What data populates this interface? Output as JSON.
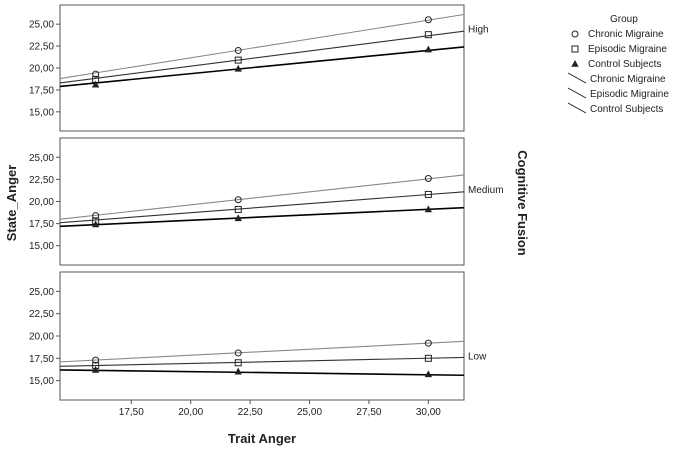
{
  "chart_data": {
    "type": "line",
    "xlabel": "Trait Anger",
    "ylabel": "State_Anger",
    "facet_label": "Cognitive Fusion",
    "xlim": [
      14.5,
      31.5
    ],
    "x_ticks": [
      "17,50",
      "20,00",
      "22,50",
      "25,00",
      "27,50",
      "30,00"
    ],
    "x_tick_values": [
      17.5,
      20,
      22.5,
      25,
      27.5,
      30
    ],
    "ylim": [
      13.5,
      26.5
    ],
    "y_ticks": [
      "15,00",
      "17,50",
      "20,00",
      "22,50",
      "25,00"
    ],
    "y_tick_values": [
      15,
      17.5,
      20,
      22.5,
      25
    ],
    "grid": false,
    "legend": {
      "title": "Group",
      "placement": "right",
      "marker_entries": [
        {
          "label": "Chronic Migraine",
          "marker": "circle"
        },
        {
          "label": "Episodic Migraine",
          "marker": "square"
        },
        {
          "label": "Control Subjects",
          "marker": "triangle"
        }
      ],
      "line_entries": [
        {
          "label": "Chronic Migraine"
        },
        {
          "label": "Episodic Migraine"
        },
        {
          "label": "Control Subjects"
        }
      ]
    },
    "panels": [
      {
        "label": "High",
        "series": [
          {
            "group": "Chronic Migraine",
            "marker": "circle",
            "color": "#888888",
            "points": [
              [
                16,
                19.3
              ],
              [
                22,
                22.0
              ],
              [
                30,
                25.5
              ]
            ],
            "fit": [
              [
                14.5,
                18.8
              ],
              [
                31.5,
                26.1
              ]
            ]
          },
          {
            "group": "Episodic Migraine",
            "marker": "square",
            "color": "#333333",
            "points": [
              [
                16,
                18.7
              ],
              [
                22,
                20.9
              ],
              [
                30,
                23.8
              ]
            ],
            "fit": [
              [
                14.5,
                18.3
              ],
              [
                31.5,
                24.2
              ]
            ]
          },
          {
            "group": "Control Subjects",
            "marker": "triangle",
            "color": "#000000",
            "points": [
              [
                16,
                18.1
              ],
              [
                22,
                19.9
              ],
              [
                30,
                22.1
              ]
            ],
            "fit": [
              [
                14.5,
                17.9
              ],
              [
                31.5,
                22.4
              ]
            ]
          }
        ]
      },
      {
        "label": "Medium",
        "series": [
          {
            "group": "Chronic Migraine",
            "marker": "circle",
            "color": "#888888",
            "points": [
              [
                16,
                18.4
              ],
              [
                22,
                20.2
              ],
              [
                30,
                22.6
              ]
            ],
            "fit": [
              [
                14.5,
                18.0
              ],
              [
                31.5,
                23.0
              ]
            ]
          },
          {
            "group": "Episodic Migraine",
            "marker": "square",
            "color": "#333333",
            "points": [
              [
                16,
                17.8
              ],
              [
                22,
                19.1
              ],
              [
                30,
                20.8
              ]
            ],
            "fit": [
              [
                14.5,
                17.6
              ],
              [
                31.5,
                21.1
              ]
            ]
          },
          {
            "group": "Control Subjects",
            "marker": "triangle",
            "color": "#000000",
            "points": [
              [
                16,
                17.4
              ],
              [
                22,
                18.1
              ],
              [
                30,
                19.1
              ]
            ],
            "fit": [
              [
                14.5,
                17.2
              ],
              [
                31.5,
                19.3
              ]
            ]
          }
        ]
      },
      {
        "label": "Low",
        "series": [
          {
            "group": "Chronic Migraine",
            "marker": "circle",
            "color": "#888888",
            "points": [
              [
                16,
                17.3
              ],
              [
                22,
                18.1
              ],
              [
                30,
                19.2
              ]
            ],
            "fit": [
              [
                14.5,
                17.1
              ],
              [
                31.5,
                19.4
              ]
            ]
          },
          {
            "group": "Episodic Migraine",
            "marker": "square",
            "color": "#333333",
            "points": [
              [
                16,
                16.7
              ],
              [
                22,
                17.0
              ],
              [
                30,
                17.5
              ]
            ],
            "fit": [
              [
                14.5,
                16.6
              ],
              [
                31.5,
                17.6
              ]
            ]
          },
          {
            "group": "Control Subjects",
            "marker": "triangle",
            "color": "#000000",
            "points": [
              [
                16,
                16.2
              ],
              [
                22,
                16.0
              ],
              [
                30,
                15.7
              ]
            ],
            "fit": [
              [
                14.5,
                16.2
              ],
              [
                31.5,
                15.6
              ]
            ]
          }
        ]
      }
    ]
  }
}
